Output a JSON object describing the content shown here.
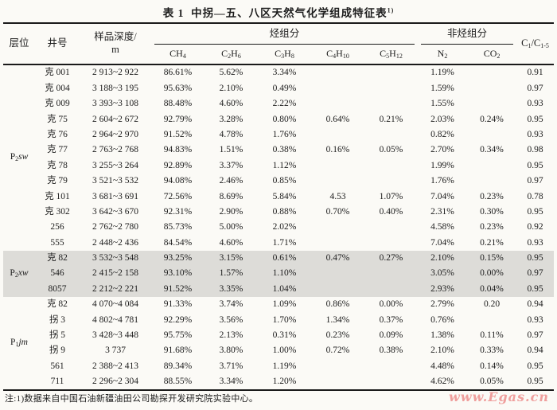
{
  "title": {
    "prefix": "表 1",
    "main": "中拐—五、八区天然气化学组成特征表",
    "superscript": "1)"
  },
  "header": {
    "horizon": "层位",
    "well": "井号",
    "depth_line1": "样品深度/",
    "depth_line2": "m",
    "hydrocarbon_group": "烃组分",
    "non_hydrocarbon_group": "非烃组分",
    "ratio_parts": [
      {
        "t": "C"
      },
      {
        "s": "1"
      },
      {
        "t": "/C"
      },
      {
        "s": "1-5"
      }
    ],
    "components": [
      [
        {
          "t": "CH"
        },
        {
          "s": "4"
        }
      ],
      [
        {
          "t": "C"
        },
        {
          "s": "2"
        },
        {
          "t": "H"
        },
        {
          "s": "6"
        }
      ],
      [
        {
          "t": "C"
        },
        {
          "s": "3"
        },
        {
          "t": "H"
        },
        {
          "s": "8"
        }
      ],
      [
        {
          "t": "C"
        },
        {
          "s": "4"
        },
        {
          "t": "H"
        },
        {
          "s": "10"
        }
      ],
      [
        {
          "t": "C"
        },
        {
          "s": "5"
        },
        {
          "t": "H"
        },
        {
          "s": "12"
        }
      ],
      [
        {
          "t": "N"
        },
        {
          "s": "2"
        }
      ],
      [
        {
          "t": "CO"
        },
        {
          "s": "2"
        }
      ]
    ]
  },
  "table": {
    "sections": [
      {
        "horizon_parts": [
          {
            "t": "P"
          },
          {
            "s": "2"
          },
          {
            "i": "sw"
          }
        ],
        "highlighted": false,
        "rows": [
          {
            "well": "克 001",
            "depth": "2 913~2 922",
            "ch4": "86.61%",
            "c2h6": "5.62%",
            "c3h8": "3.34%",
            "c4h10": "",
            "c5h12": "",
            "n2": "1.19%",
            "co2": "",
            "ratio": "0.91"
          },
          {
            "well": "克 004",
            "depth": "3 188~3 195",
            "ch4": "95.63%",
            "c2h6": "2.10%",
            "c3h8": "0.49%",
            "c4h10": "",
            "c5h12": "",
            "n2": "1.59%",
            "co2": "",
            "ratio": "0.97"
          },
          {
            "well": "克 009",
            "depth": "3 393~3 108",
            "ch4": "88.48%",
            "c2h6": "4.60%",
            "c3h8": "2.22%",
            "c4h10": "",
            "c5h12": "",
            "n2": "1.55%",
            "co2": "",
            "ratio": "0.93"
          },
          {
            "well": "克 75",
            "depth": "2 604~2 672",
            "ch4": "92.79%",
            "c2h6": "3.28%",
            "c3h8": "0.80%",
            "c4h10": "0.64%",
            "c5h12": "0.21%",
            "n2": "2.03%",
            "co2": "0.24%",
            "ratio": "0.95"
          },
          {
            "well": "克 76",
            "depth": "2 964~2 970",
            "ch4": "91.52%",
            "c2h6": "4.78%",
            "c3h8": "1.76%",
            "c4h10": "",
            "c5h12": "",
            "n2": "0.82%",
            "co2": "",
            "ratio": "0.93"
          },
          {
            "well": "克 77",
            "depth": "2 763~2 768",
            "ch4": "94.83%",
            "c2h6": "1.51%",
            "c3h8": "0.38%",
            "c4h10": "0.16%",
            "c5h12": "0.05%",
            "n2": "2.70%",
            "co2": "0.34%",
            "ratio": "0.98"
          },
          {
            "well": "克 78",
            "depth": "3 255~3 264",
            "ch4": "92.89%",
            "c2h6": "3.37%",
            "c3h8": "1.12%",
            "c4h10": "",
            "c5h12": "",
            "n2": "1.99%",
            "co2": "",
            "ratio": "0.95"
          },
          {
            "well": "克 79",
            "depth": "3 521~3 532",
            "ch4": "94.08%",
            "c2h6": "2.46%",
            "c3h8": "0.85%",
            "c4h10": "",
            "c5h12": "",
            "n2": "1.76%",
            "co2": "",
            "ratio": "0.97"
          },
          {
            "well": "克 101",
            "depth": "3 681~3 691",
            "ch4": "72.56%",
            "c2h6": "8.69%",
            "c3h8": "5.84%",
            "c4h10": "4.53",
            "c5h12": "1.07%",
            "n2": "7.04%",
            "co2": "0.23%",
            "ratio": "0.78"
          },
          {
            "well": "克 302",
            "depth": "3 642~3 670",
            "ch4": "92.31%",
            "c2h6": "2.90%",
            "c3h8": "0.88%",
            "c4h10": "0.70%",
            "c5h12": "0.40%",
            "n2": "2.31%",
            "co2": "0.30%",
            "ratio": "0.95"
          },
          {
            "well": "256",
            "depth": "2 762~2 780",
            "ch4": "85.73%",
            "c2h6": "5.00%",
            "c3h8": "2.02%",
            "c4h10": "",
            "c5h12": "",
            "n2": "4.58%",
            "co2": "0.23%",
            "ratio": "0.92"
          },
          {
            "well": "555",
            "depth": "2 448~2 436",
            "ch4": "84.54%",
            "c2h6": "4.60%",
            "c3h8": "1.71%",
            "c4h10": "",
            "c5h12": "",
            "n2": "7.04%",
            "co2": "0.21%",
            "ratio": "0.93"
          }
        ]
      },
      {
        "horizon_parts": [
          {
            "t": "P"
          },
          {
            "s": "2"
          },
          {
            "i": "xw"
          }
        ],
        "highlighted": true,
        "rows": [
          {
            "well": "克 82",
            "depth": "3 532~3 548",
            "ch4": "93.25%",
            "c2h6": "3.15%",
            "c3h8": "0.61%",
            "c4h10": "0.47%",
            "c5h12": "0.27%",
            "n2": "2.10%",
            "co2": "0.15%",
            "ratio": "0.95"
          },
          {
            "well": "546",
            "depth": "2 415~2 158",
            "ch4": "93.10%",
            "c2h6": "1.57%",
            "c3h8": "1.10%",
            "c4h10": "",
            "c5h12": "",
            "n2": "3.05%",
            "co2": "0.00%",
            "ratio": "0.97"
          },
          {
            "well": "8057",
            "depth": "2 212~2 221",
            "ch4": "91.52%",
            "c2h6": "3.35%",
            "c3h8": "1.04%",
            "c4h10": "",
            "c5h12": "",
            "n2": "2.93%",
            "co2": "0.04%",
            "ratio": "0.95"
          }
        ]
      },
      {
        "horizon_parts": [
          {
            "t": "P"
          },
          {
            "s": "1"
          },
          {
            "i": "jm"
          }
        ],
        "highlighted": false,
        "rows": [
          {
            "well": "克 82",
            "depth": "4 070~4 084",
            "ch4": "91.33%",
            "c2h6": "3.74%",
            "c3h8": "1.09%",
            "c4h10": "0.86%",
            "c5h12": "0.00%",
            "n2": "2.79%",
            "co2": "0.20",
            "ratio": "0.94"
          },
          {
            "well": "拐 3",
            "depth": "4 802~4 781",
            "ch4": "92.29%",
            "c2h6": "3.56%",
            "c3h8": "1.70%",
            "c4h10": "1.34%",
            "c5h12": "0.37%",
            "n2": "0.76%",
            "co2": "",
            "ratio": "0.93"
          },
          {
            "well": "拐 5",
            "depth": "3 428~3 448",
            "ch4": "95.75%",
            "c2h6": "2.13%",
            "c3h8": "0.31%",
            "c4h10": "0.23%",
            "c5h12": "0.09%",
            "n2": "1.38%",
            "co2": "0.11%",
            "ratio": "0.97"
          },
          {
            "well": "拐 9",
            "depth": "3 737",
            "ch4": "91.68%",
            "c2h6": "3.80%",
            "c3h8": "1.00%",
            "c4h10": "0.72%",
            "c5h12": "0.38%",
            "n2": "2.10%",
            "co2": "0.33%",
            "ratio": "0.94"
          },
          {
            "well": "561",
            "depth": "2 388~2 413",
            "ch4": "89.34%",
            "c2h6": "3.71%",
            "c3h8": "1.19%",
            "c4h10": "",
            "c5h12": "",
            "n2": "4.48%",
            "co2": "0.14%",
            "ratio": "0.95"
          },
          {
            "well": "711",
            "depth": "2 296~2 304",
            "ch4": "88.55%",
            "c2h6": "3.34%",
            "c3h8": "1.20%",
            "c4h10": "",
            "c5h12": "",
            "n2": "4.62%",
            "co2": "0.05%",
            "ratio": "0.95"
          }
        ]
      }
    ]
  },
  "note": "注:1)数据来自中国石油新疆油田公司勘探开发研究院实验中心。",
  "watermark": "www.Egas.cn",
  "colors": {
    "background": "#fbfaf6",
    "text": "#1c1c1c",
    "rule": "#1a1a1a",
    "highlight_row": "#dddcd8",
    "watermark": "#ef9f9d"
  }
}
